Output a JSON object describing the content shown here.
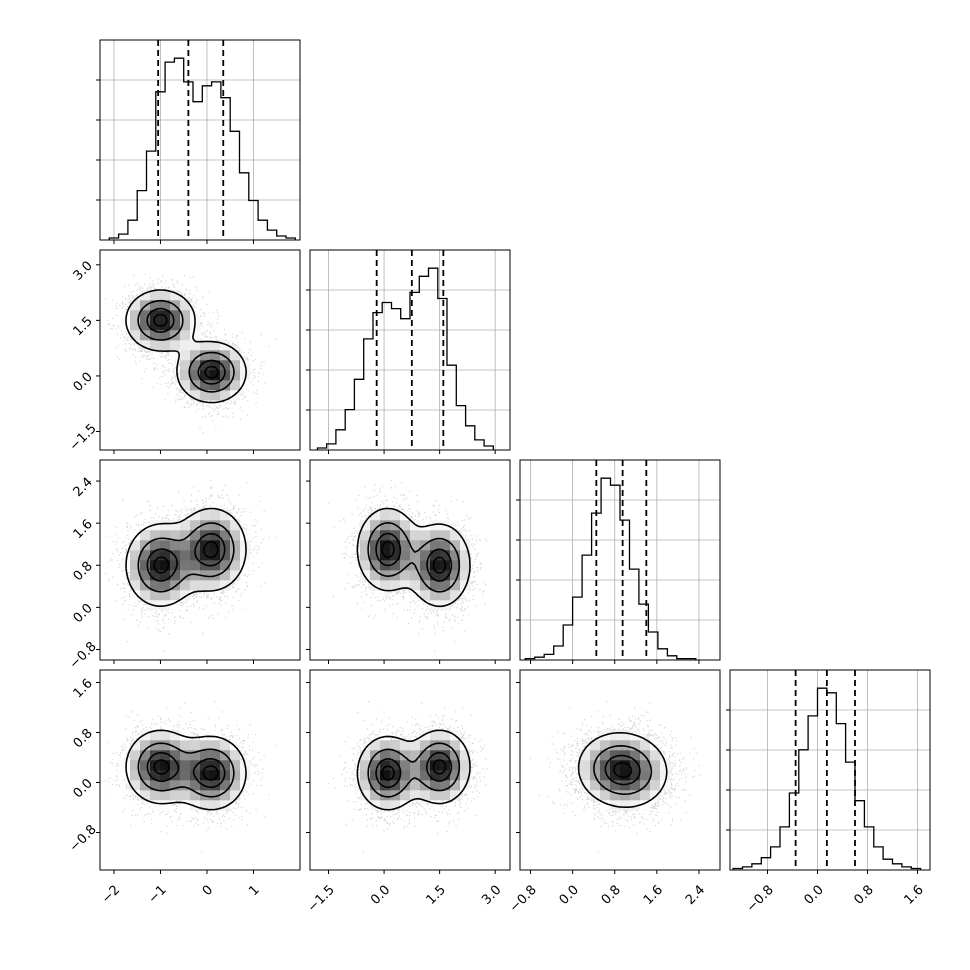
{
  "chart_data": {
    "type": "corner",
    "title": "",
    "parameters": [
      "",
      "",
      "",
      ""
    ],
    "grid": true,
    "colors": {
      "ink": "#000000",
      "points": "#8a8a8a",
      "grid": "#b0b0b0"
    },
    "axes": [
      {
        "lim": [
          -2.3,
          2.0
        ],
        "ticks": [
          -2,
          -1,
          0,
          1
        ],
        "tick_labels": [
          "−2",
          "−1",
          "0",
          "1"
        ]
      },
      {
        "lim": [
          -2.0,
          3.4
        ],
        "ticks": [
          -1.5,
          0.0,
          1.5,
          3.0
        ],
        "tick_labels": [
          "−1.5",
          "0.0",
          "1.5",
          "3.0"
        ]
      },
      {
        "lim": [
          -1.0,
          2.8
        ],
        "ticks": [
          -0.8,
          0.0,
          0.8,
          1.6,
          2.4
        ],
        "tick_labels": [
          "−0.8",
          "0.0",
          "0.8",
          "1.6",
          "2.4"
        ]
      },
      {
        "lim": [
          -1.4,
          1.8
        ],
        "ticks": [
          -0.8,
          0.0,
          0.8,
          1.6
        ],
        "tick_labels": [
          "−0.8",
          "0.0",
          "0.8",
          "1.6"
        ]
      }
    ],
    "quantiles": [
      [
        -1.05,
        -0.4,
        0.35
      ],
      [
        -0.2,
        0.75,
        1.6
      ],
      [
        0.45,
        0.95,
        1.4
      ],
      [
        -0.35,
        0.15,
        0.6
      ]
    ],
    "histograms": [
      {
        "bin_start": -2.1,
        "bin_width": 0.2,
        "counts": [
          1,
          3,
          10,
          25,
          45,
          75,
          90,
          92,
          80,
          70,
          78,
          80,
          72,
          55,
          34,
          20,
          10,
          5,
          2,
          1
        ]
      },
      {
        "bin_start": -1.8,
        "bin_width": 0.25,
        "counts": [
          1,
          3,
          10,
          20,
          35,
          55,
          68,
          73,
          70,
          65,
          78,
          86,
          90,
          75,
          42,
          22,
          12,
          5,
          2
        ]
      },
      {
        "bin_start": -0.9,
        "bin_width": 0.18,
        "counts": [
          1,
          2,
          4,
          10,
          25,
          45,
          75,
          105,
          130,
          125,
          100,
          65,
          40,
          20,
          8,
          3,
          1,
          1
        ]
      },
      {
        "bin_start": -1.35,
        "bin_width": 0.15,
        "counts": [
          1,
          2,
          4,
          8,
          15,
          28,
          50,
          78,
          100,
          118,
          115,
          95,
          70,
          45,
          28,
          15,
          7,
          4,
          2,
          1
        ]
      }
    ],
    "distribution": {
      "components": [
        {
          "weight": 0.5,
          "mean": [
            -1.0,
            1.5,
            0.8,
            0.25
          ],
          "sd": [
            0.38,
            0.42,
            0.4,
            0.3
          ]
        },
        {
          "weight": 0.5,
          "mean": [
            0.1,
            0.1,
            1.1,
            0.15
          ],
          "sd": [
            0.38,
            0.42,
            0.4,
            0.3
          ]
        }
      ],
      "scatter_points": 5000,
      "contour_levels": [
        0.15,
        0.45,
        0.75,
        0.93
      ]
    }
  }
}
